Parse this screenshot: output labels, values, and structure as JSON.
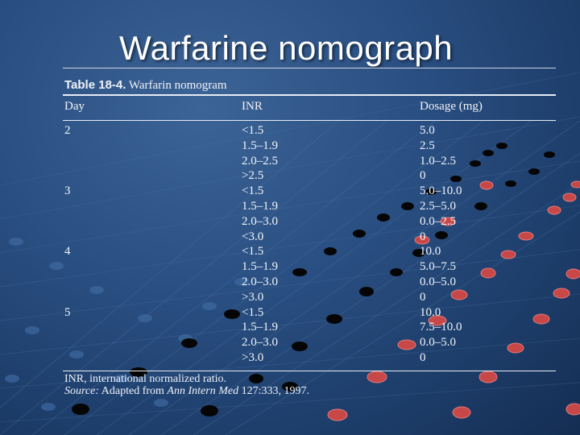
{
  "slide": {
    "title": "Warfarine nomograph"
  },
  "table": {
    "caption_label": "Table 18-4.",
    "caption_text": "Warfarin nomogram",
    "headers": {
      "day": "Day",
      "inr": "INR",
      "dosage": "Dosage (mg)"
    },
    "rows": [
      {
        "day": "2",
        "inr": "<1.5",
        "dosage": "5.0"
      },
      {
        "day": "",
        "inr": "1.5–1.9",
        "dosage": "2.5"
      },
      {
        "day": "",
        "inr": "2.0–2.5",
        "dosage": "1.0–2.5"
      },
      {
        "day": "",
        "inr": ">2.5",
        "dosage": "0"
      },
      {
        "day": "3",
        "inr": "<1.5",
        "dosage": "5.0–10.0"
      },
      {
        "day": "",
        "inr": "1.5–1.9",
        "dosage": "2.5–5.0"
      },
      {
        "day": "",
        "inr": "2.0–3.0",
        "dosage": "0.0–2.5"
      },
      {
        "day": "",
        "inr": "<3.0",
        "dosage": "0"
      },
      {
        "day": "4",
        "inr": "<1.5",
        "dosage": "10.0"
      },
      {
        "day": "",
        "inr": "1.5–1.9",
        "dosage": "5.0–7.5"
      },
      {
        "day": "",
        "inr": "2.0–3.0",
        "dosage": "0.0–5.0"
      },
      {
        "day": "",
        "inr": ">3.0",
        "dosage": "0"
      },
      {
        "day": "5",
        "inr": "<1.5",
        "dosage": "10.0"
      },
      {
        "day": "",
        "inr": "1.5–1.9",
        "dosage": "7.5–10.0"
      },
      {
        "day": "",
        "inr": "2.0–3.0",
        "dosage": "0.0–5.0"
      },
      {
        "day": "",
        "inr": ">3.0",
        "dosage": "0"
      }
    ],
    "footnote": "INR, international normalized ratio.",
    "source_label": "Source:",
    "source_text_1": "Adapted from",
    "source_journal": "Ann Intern Med",
    "source_text_2": "127:333, 1997."
  },
  "colors": {
    "background": "#2a4f82",
    "text": "#f1f4f9",
    "dot_dark": "#050505",
    "dot_red": "#c84848"
  }
}
